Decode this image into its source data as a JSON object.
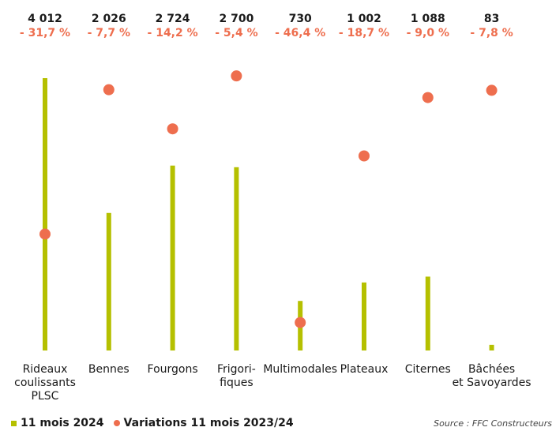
{
  "chart_data": {
    "type": "bar",
    "categories": [
      [
        "Rideaux",
        "coulissants",
        "PLSC"
      ],
      [
        "Bennes"
      ],
      [
        "Fourgons"
      ],
      [
        "Frigori-",
        "fiques"
      ],
      [
        "Multimodales"
      ],
      [
        "Plateaux"
      ],
      [
        "Citernes"
      ],
      [
        "Bâchées",
        "et Savoyardes"
      ]
    ],
    "value_labels": [
      "4 012",
      "2 026",
      "2 724",
      "2 700",
      "730",
      "1 002",
      "1 088",
      "83"
    ],
    "variation_labels": [
      "- 31,7 %",
      "- 7,7 %",
      "- 14,2 %",
      "- 5,4 %",
      "- 46,4 %",
      "- 18,7 %",
      "- 9,0 %",
      "- 7,8 %"
    ],
    "series": [
      {
        "name": "11 mois 2024",
        "type": "bar",
        "values": [
          4012,
          2026,
          2724,
          2700,
          730,
          1002,
          1088,
          83
        ]
      },
      {
        "name": "Variations 11 mois 2023/24",
        "type": "scatter",
        "values": [
          -31.7,
          -7.7,
          -14.2,
          -5.4,
          -46.4,
          -18.7,
          -9.0,
          -7.8
        ]
      }
    ],
    "ylim_bars": [
      0,
      4012
    ],
    "ylim_variations": [
      -50,
      0
    ],
    "grid": false,
    "legend_placement": "bottom-left"
  },
  "legend": {
    "bar_label": "11 mois 2024",
    "dot_label": "Variations 11 mois 2023/24"
  },
  "source": "Source : FFC Constructeurs",
  "colors": {
    "bar": "#b5c000",
    "dot": "#ee6e4e",
    "variation_text": "#ee6e4e",
    "text": "#1a1a1a"
  }
}
